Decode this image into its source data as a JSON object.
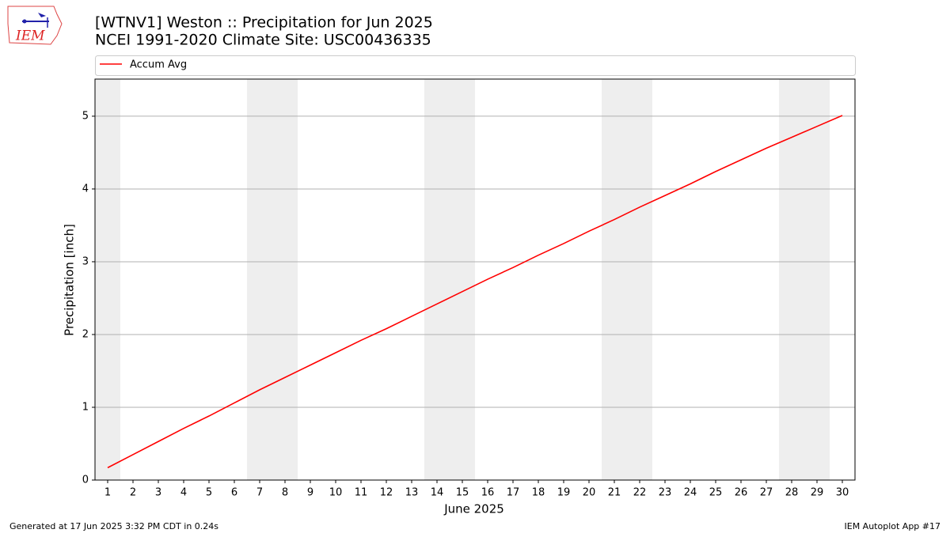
{
  "logo_text": "IEM",
  "chart_data": {
    "type": "line",
    "title": "[WTNV1] Weston :: Precipitation for Jun 2025",
    "subtitle": "NCEI 1991-2020 Climate Site: USC00436335",
    "x_label": "June 2025",
    "y_label": "Precipitation [inch]",
    "x": [
      1,
      2,
      3,
      4,
      5,
      6,
      7,
      8,
      9,
      10,
      11,
      12,
      13,
      14,
      15,
      16,
      17,
      18,
      19,
      20,
      21,
      22,
      23,
      24,
      25,
      26,
      27,
      28,
      29,
      30
    ],
    "series": [
      {
        "name": "Accum Avg",
        "color": "#ff0000",
        "values": [
          0.17,
          0.35,
          0.53,
          0.71,
          0.88,
          1.06,
          1.24,
          1.41,
          1.58,
          1.75,
          1.92,
          2.08,
          2.25,
          2.42,
          2.59,
          2.76,
          2.92,
          3.09,
          3.25,
          3.42,
          3.58,
          3.75,
          3.91,
          4.07,
          4.24,
          4.4,
          4.56,
          4.71,
          4.86,
          5.01
        ]
      }
    ],
    "xlim": [
      0.5,
      30.5
    ],
    "xticks": [
      1,
      2,
      3,
      4,
      5,
      6,
      7,
      8,
      9,
      10,
      11,
      12,
      13,
      14,
      15,
      16,
      17,
      18,
      19,
      20,
      21,
      22,
      23,
      24,
      25,
      26,
      27,
      28,
      29,
      30
    ],
    "ylim": [
      0,
      5.51
    ],
    "yticks": [
      0,
      1,
      2,
      3,
      4,
      5
    ],
    "grid": "y",
    "shaded_days": [
      1,
      7,
      8,
      14,
      15,
      21,
      22,
      28,
      29
    ],
    "shade_color": "#eeeeee",
    "legend": "top",
    "footer_left": "Generated at 17 Jun 2025 3:32 PM CDT in 0.24s",
    "footer_right": "IEM Autoplot App #17"
  }
}
